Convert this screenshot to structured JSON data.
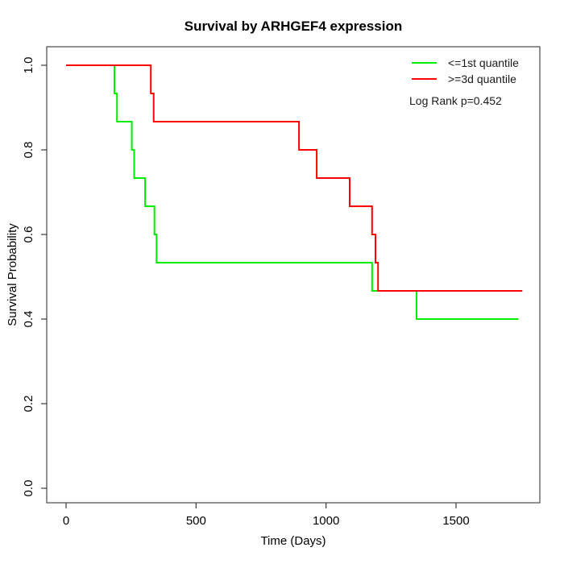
{
  "chart_data": {
    "type": "line",
    "subtype": "kaplan-meier-step",
    "title": "Survival by ARHGEF4 expression",
    "xlabel": "Time (Days)",
    "ylabel": "Survival Probability",
    "annotation": "Log Rank p=0.452",
    "xlim": [
      0,
      1760
    ],
    "ylim": [
      0.0,
      1.0
    ],
    "grid": false,
    "legend_position": "top-right",
    "x_ticks": [
      0,
      500,
      1000,
      1500
    ],
    "x_tick_labels": [
      "0",
      "500",
      "1000",
      "1500"
    ],
    "y_ticks": [
      0.0,
      0.2,
      0.4,
      0.6,
      0.8,
      1.0
    ],
    "y_tick_labels": [
      "0.0",
      "0.2",
      "0.4",
      "0.6",
      "0.8",
      "1.0"
    ],
    "axis_color": "#4a4a4a",
    "series": [
      {
        "name": "<=1st quantile",
        "color": "#00ee00",
        "steps": [
          [
            0,
            1.0
          ],
          [
            186,
            0.9333
          ],
          [
            196,
            0.8667
          ],
          [
            253,
            0.8
          ],
          [
            262,
            0.7333
          ],
          [
            304,
            0.6667
          ],
          [
            340,
            0.6
          ],
          [
            348,
            0.5333
          ],
          [
            1177,
            0.4667
          ],
          [
            1348,
            0.4
          ],
          [
            1740,
            0.4
          ]
        ]
      },
      {
        "name": ">=3d quantile",
        "color": "#ff0000",
        "steps": [
          [
            0,
            1.0
          ],
          [
            326,
            0.9333
          ],
          [
            337,
            0.8667
          ],
          [
            896,
            0.8
          ],
          [
            964,
            0.7333
          ],
          [
            1091,
            0.6667
          ],
          [
            1177,
            0.6
          ],
          [
            1190,
            0.5333
          ],
          [
            1200,
            0.4667
          ],
          [
            1755,
            0.4667
          ]
        ]
      }
    ]
  }
}
